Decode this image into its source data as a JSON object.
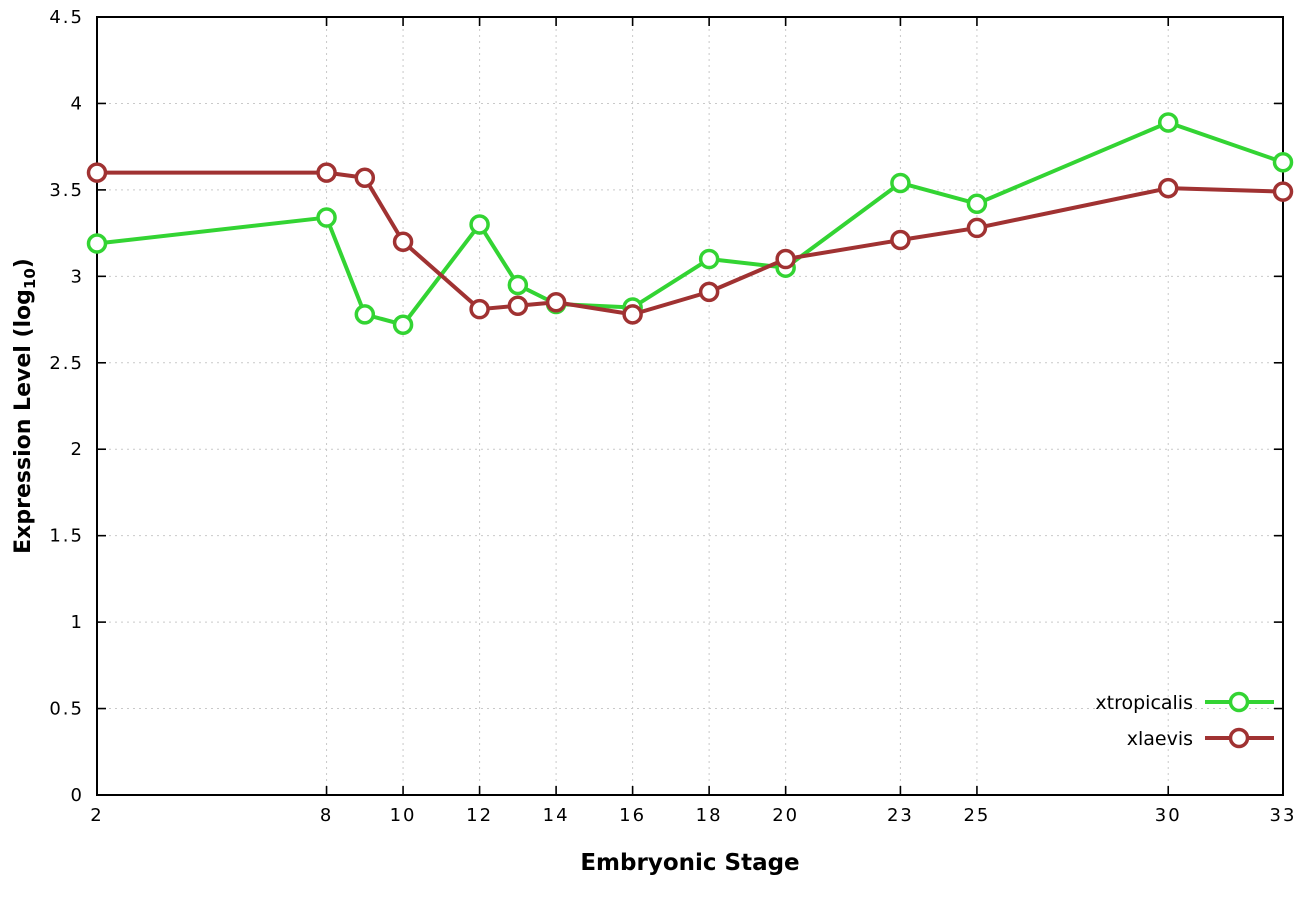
{
  "labels": {
    "ylabel_main": "Expression Level (log",
    "ylabel_sub": "10",
    "ylabel_close": ")"
  },
  "chart_data": {
    "type": "line",
    "title": "",
    "xlabel": "Embryonic Stage",
    "ylabel": "Expression Level (log10)",
    "xlim": [
      2,
      33
    ],
    "ylim": [
      0,
      4.5
    ],
    "x_ticks": [
      2,
      8,
      10,
      12,
      14,
      16,
      18,
      20,
      23,
      25,
      30,
      33
    ],
    "y_ticks": [
      0,
      0.5,
      1,
      1.5,
      2,
      2.5,
      3,
      3.5,
      4,
      4.5
    ],
    "grid": true,
    "legend_position": "bottom-right",
    "x": [
      2,
      8,
      9,
      10,
      12,
      13,
      14,
      16,
      18,
      20,
      23,
      25,
      30,
      33
    ],
    "series": [
      {
        "name": "xtropicalis",
        "color": "#33d433",
        "values": [
          3.19,
          3.34,
          2.78,
          2.72,
          3.3,
          2.95,
          2.84,
          2.82,
          3.1,
          3.05,
          3.54,
          3.42,
          3.89,
          3.66
        ]
      },
      {
        "name": "xlaevis",
        "color": "#a03232",
        "values": [
          3.6,
          3.6,
          3.57,
          3.2,
          2.81,
          2.83,
          2.85,
          2.78,
          2.91,
          3.1,
          3.21,
          3.28,
          3.51,
          3.49
        ]
      }
    ]
  }
}
